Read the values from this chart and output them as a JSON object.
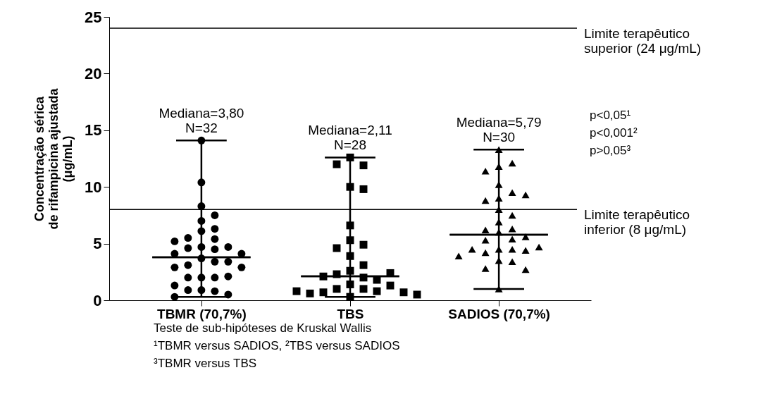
{
  "chart_data": {
    "type": "scatter",
    "ylabel": "Concentração sérica\nde rifampicina ajustada\n(μg/mL)",
    "categories": [
      "TBMR (70,7%)",
      "TBS",
      "SADIOS (70,7%)"
    ],
    "ylim": [
      0,
      25
    ],
    "yticks": [
      0,
      5,
      10,
      15,
      20,
      25
    ],
    "grid": false,
    "series": [
      {
        "marker": "circle",
        "color": "#000000",
        "x": [
          "TBMR (70,7%)",
          "TBMR (70,7%)",
          "TBMR (70,7%)",
          "TBMR (70,7%)",
          "TBMR (70,7%)",
          "TBMR (70,7%)",
          "TBMR (70,7%)",
          "TBMR (70,7%)",
          "TBMR (70,7%)",
          "TBMR (70,7%)",
          "TBMR (70,7%)",
          "TBMR (70,7%)",
          "TBMR (70,7%)",
          "TBMR (70,7%)",
          "TBMR (70,7%)",
          "TBMR (70,7%)",
          "TBMR (70,7%)",
          "TBMR (70,7%)",
          "TBMR (70,7%)",
          "TBMR (70,7%)",
          "TBMR (70,7%)",
          "TBMR (70,7%)",
          "TBMR (70,7%)",
          "TBMR (70,7%)",
          "TBMR (70,7%)",
          "TBMR (70,7%)",
          "TBMR (70,7%)",
          "TBMR (70,7%)",
          "TBMR (70,7%)",
          "TBMR (70,7%)",
          "TBMR (70,7%)",
          "TBMR (70,7%)"
        ],
        "values": [
          14.1,
          10.4,
          8.3,
          7.5,
          7.0,
          6.1,
          6.3,
          5.4,
          5.5,
          4.7,
          4.6,
          4.5,
          4.7,
          5.2,
          4.1,
          4.1,
          3.7,
          3.4,
          3.1,
          3.4,
          2.9,
          2.9,
          2.0,
          2.0,
          2.0,
          2.1,
          0.9,
          0.8,
          0.9,
          1.3,
          0.5,
          0.3
        ]
      },
      {
        "marker": "square",
        "color": "#000000",
        "x": [
          "TBS",
          "TBS",
          "TBS",
          "TBS",
          "TBS",
          "TBS",
          "TBS",
          "TBS",
          "TBS",
          "TBS",
          "TBS",
          "TBS",
          "TBS",
          "TBS",
          "TBS",
          "TBS",
          "TBS",
          "TBS",
          "TBS",
          "TBS",
          "TBS",
          "TBS",
          "TBS",
          "TBS",
          "TBS",
          "TBS",
          "TBS",
          "TBS"
        ],
        "values": [
          12.6,
          11.9,
          12.0,
          10.0,
          9.8,
          6.6,
          5.3,
          4.9,
          4.6,
          3.9,
          3.1,
          2.6,
          2.3,
          2.0,
          1.8,
          2.1,
          2.4,
          1.4,
          1.0,
          1.0,
          1.3,
          0.8,
          0.7,
          0.6,
          0.7,
          0.8,
          0.3,
          0.5
        ]
      },
      {
        "marker": "triangle",
        "color": "#000000",
        "x": [
          "SADIOS (70,7%)",
          "SADIOS (70,7%)",
          "SADIOS (70,7%)",
          "SADIOS (70,7%)",
          "SADIOS (70,7%)",
          "SADIOS (70,7%)",
          "SADIOS (70,7%)",
          "SADIOS (70,7%)",
          "SADIOS (70,7%)",
          "SADIOS (70,7%)",
          "SADIOS (70,7%)",
          "SADIOS (70,7%)",
          "SADIOS (70,7%)",
          "SADIOS (70,7%)",
          "SADIOS (70,7%)",
          "SADIOS (70,7%)",
          "SADIOS (70,7%)",
          "SADIOS (70,7%)",
          "SADIOS (70,7%)",
          "SADIOS (70,7%)",
          "SADIOS (70,7%)",
          "SADIOS (70,7%)",
          "SADIOS (70,7%)",
          "SADIOS (70,7%)",
          "SADIOS (70,7%)",
          "SADIOS (70,7%)",
          "SADIOS (70,7%)",
          "SADIOS (70,7%)",
          "SADIOS (70,7%)",
          "SADIOS (70,7%)"
        ],
        "values": [
          13.3,
          11.8,
          12.1,
          11.4,
          10.2,
          9.5,
          9.0,
          8.8,
          9.3,
          8.0,
          7.5,
          6.9,
          6.3,
          6.0,
          6.2,
          5.4,
          5.3,
          5.6,
          4.5,
          4.5,
          4.2,
          4.4,
          4.5,
          4.7,
          3.9,
          3.5,
          3.4,
          2.8,
          2.7,
          1.0
        ]
      },
      {
        "type": "box",
        "color": "#000000",
        "boxes": [
          {
            "low": 0.3,
            "q1": 3.8,
            "median": 3.8,
            "q3": 3.8,
            "high": 14.1
          },
          {
            "low": 0.3,
            "q1": 2.11,
            "median": 2.11,
            "q3": 2.11,
            "high": 12.6
          },
          {
            "low": 1.0,
            "q1": 5.79,
            "median": 5.79,
            "q3": 5.79,
            "high": 13.3
          }
        ]
      }
    ],
    "ref_lines": [
      {
        "axis": "y",
        "value": 24,
        "label": "Limite terapêutico\nsuperior (24 μg/mL)",
        "color": "#000000"
      },
      {
        "axis": "y",
        "value": 8,
        "label": "Limite terapêutico\ninferior (8 μg/mL)",
        "color": "#000000"
      }
    ],
    "annotations": [
      {
        "text": "Mediana=3,80\nN=32",
        "x": "TBMR (70,7%)",
        "y": 14.1
      },
      {
        "text": "Mediana=2,11\nN=28",
        "x": "TBS",
        "y": 12.6
      },
      {
        "text": "Mediana=5,79\nN=30",
        "x": "SADIOS (70,7%)",
        "y": 13.3
      },
      "p<0,05¹\np<0,001²\np>0,05³",
      "Teste de sub-hipóteses de Kruskal Wallis\n¹TBMR versus SADIOS, ²TBS versus SADIOS\n³TBMR versus TBS"
    ]
  }
}
